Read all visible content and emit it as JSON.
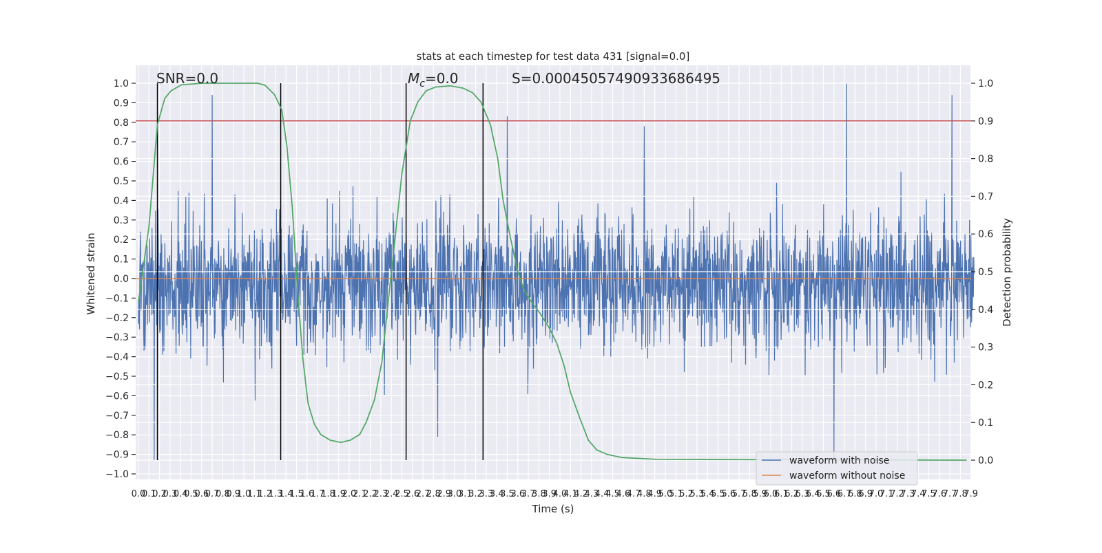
{
  "chart_data": {
    "type": "line",
    "title": "stats at each timestep for test data 431 [signal=0.0]",
    "xlabel": "Time (s)",
    "ylabel_left": "Whitened strain",
    "ylabel_right": "Detection probability",
    "xlim": [
      -0.03,
      7.93
    ],
    "ylim_left": [
      -1.05,
      1.1
    ],
    "ylim_right": [
      -0.05,
      1.05
    ],
    "grid": true,
    "legend_placement": "lower-right",
    "x_ticks": [
      "0.0",
      "0.1",
      "0.2",
      "0.3",
      "0.4",
      "0.5",
      "0.6",
      "0.7",
      "0.8",
      "0.9",
      "1.0",
      "1.1",
      "1.2",
      "1.3",
      "1.4",
      "1.5",
      "1.6",
      "1.7",
      "1.8",
      "1.9",
      "2.0",
      "2.1",
      "2.2",
      "2.3",
      "2.4",
      "2.5",
      "2.6",
      "2.7",
      "2.8",
      "2.9",
      "3.0",
      "3.1",
      "3.2",
      "3.3",
      "3.4",
      "3.5",
      "3.6",
      "3.7",
      "3.8",
      "3.9",
      "4.0",
      "4.1",
      "4.2",
      "4.3",
      "4.4",
      "4.5",
      "4.6",
      "4.7",
      "4.8",
      "4.9",
      "5.0",
      "5.1",
      "5.2",
      "5.3",
      "5.4",
      "5.5",
      "5.6",
      "5.7",
      "5.8",
      "5.9",
      "6.0",
      "6.1",
      "6.2",
      "6.3",
      "6.4",
      "6.5",
      "6.6",
      "6.7",
      "6.8",
      "6.9",
      "7.0",
      "7.1",
      "7.2",
      "7.3",
      "7.4",
      "7.5",
      "7.6",
      "7.7",
      "7.8",
      "7.9"
    ],
    "y_ticks_left": [
      "1.0",
      "0.9",
      "0.8",
      "0.7",
      "0.6",
      "0.5",
      "0.4",
      "0.3",
      "0.2",
      "0.1",
      "0.0",
      "−0.1",
      "−0.2",
      "−0.3",
      "−0.4",
      "−0.5",
      "−0.6",
      "−0.7",
      "−0.8",
      "−0.9",
      "−1.0"
    ],
    "y_ticks_right": [
      "1.0",
      "0.9",
      "0.8",
      "0.7",
      "0.6",
      "0.5",
      "0.4",
      "0.3",
      "0.2",
      "0.1",
      "0.0"
    ],
    "series": [
      {
        "name": "waveform with noise",
        "axis": "left",
        "color": "#4c72b0",
        "description_std": 0.17,
        "mean": -0.03,
        "peaks": [
          [
            0.7,
            0.94
          ],
          [
            3.5,
            0.83
          ],
          [
            6.72,
            1.0
          ],
          [
            7.72,
            0.94
          ],
          [
            4.8,
            0.78
          ],
          [
            0.15,
            -0.93
          ],
          [
            6.6,
            -0.93
          ],
          [
            2.84,
            -0.81
          ]
        ]
      },
      {
        "name": "waveform without noise",
        "axis": "left",
        "color": "#dd8452",
        "constant": 0.0
      },
      {
        "axis": "right",
        "color": "#55a868",
        "x": [
          0,
          0.1,
          0.18,
          0.25,
          0.31,
          0.41,
          0.61,
          1.13,
          1.2,
          1.29,
          1.36,
          1.41,
          1.46,
          1.51,
          1.56,
          1.61,
          1.67,
          1.73,
          1.82,
          1.92,
          2.01,
          2.1,
          2.16,
          2.24,
          2.31,
          2.37,
          2.44,
          2.5,
          2.58,
          2.65,
          2.73,
          2.82,
          2.96,
          3.08,
          3.17,
          3.25,
          3.34,
          3.41,
          3.46,
          3.53,
          3.6,
          3.66,
          3.73,
          3.81,
          3.9,
          3.97,
          4.04,
          4.1,
          4.19,
          4.27,
          4.35,
          4.45,
          4.59,
          4.92,
          7.86
        ],
        "y": [
          0.42,
          0.62,
          0.89,
          0.96,
          0.98,
          0.996,
          1.0,
          1.0,
          0.995,
          0.97,
          0.93,
          0.83,
          0.67,
          0.45,
          0.27,
          0.15,
          0.095,
          0.068,
          0.053,
          0.047,
          0.053,
          0.068,
          0.1,
          0.16,
          0.26,
          0.42,
          0.6,
          0.76,
          0.9,
          0.95,
          0.98,
          0.99,
          0.993,
          0.987,
          0.975,
          0.95,
          0.89,
          0.8,
          0.69,
          0.59,
          0.5,
          0.45,
          0.42,
          0.39,
          0.35,
          0.31,
          0.25,
          0.18,
          0.11,
          0.053,
          0.027,
          0.015,
          0.007,
          0.002,
          0.0
        ]
      }
    ],
    "threshold": {
      "axis": "right",
      "value": 0.9,
      "color": "#c44e52"
    },
    "vertical_lines": {
      "x": [
        0.18,
        1.35,
        2.54,
        3.27
      ],
      "range_right": [
        0.0,
        1.0
      ],
      "color": "#000000"
    },
    "annotations": {
      "snr": "SNR=0.0",
      "mc_symbol": "M",
      "mc_sub": "c",
      "mc_value": "=0.0",
      "s": "S=0.00045057490933686495"
    }
  }
}
